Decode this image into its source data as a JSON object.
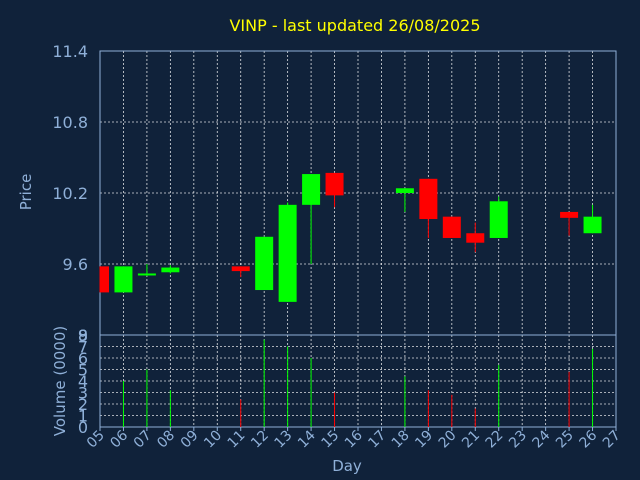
{
  "chart_data": {
    "type": "candlestick",
    "title": "VINP - last updated 26/08/2025",
    "xlabel": "Day",
    "price_panel": {
      "ylabel": "Price",
      "ylim": [
        9.0,
        11.4
      ],
      "yticks": [
        "9",
        "9.6",
        "10.2",
        "10.8",
        "11.4"
      ],
      "grid": true
    },
    "volume_panel": {
      "ylabel": "Volume (0000)",
      "ylim": [
        0,
        8
      ],
      "yticks": [
        "0",
        "1",
        "2",
        "3",
        "4",
        "5",
        "6",
        "7",
        "8"
      ],
      "grid": true
    },
    "x_tick_labels": [
      "05",
      "06",
      "07",
      "08",
      "09",
      "10",
      "11",
      "12",
      "13",
      "14",
      "15",
      "16",
      "17",
      "18",
      "19",
      "20",
      "21",
      "22",
      "23",
      "24",
      "25",
      "26",
      "27"
    ],
    "colors": {
      "up": "#00ff00",
      "down": "#ff0000",
      "background": "#10223a",
      "axis": "#8fb0d8",
      "title": "#ffff00"
    },
    "candles": [
      {
        "day": "05",
        "open": 9.58,
        "close": 9.36,
        "high": 9.58,
        "low": 9.36,
        "volume": 0
      },
      {
        "day": "06",
        "open": 9.36,
        "close": 9.58,
        "high": 9.58,
        "low": 9.36,
        "volume": 4.0
      },
      {
        "day": "07",
        "open": 9.51,
        "close": 9.52,
        "high": 9.6,
        "low": 9.5,
        "volume": 5.0
      },
      {
        "day": "08",
        "open": 9.53,
        "close": 9.57,
        "high": 9.59,
        "low": 9.52,
        "volume": 3.2
      },
      {
        "day": "11",
        "open": 9.58,
        "close": 9.54,
        "high": 9.58,
        "low": 9.49,
        "volume": 2.4
      },
      {
        "day": "12",
        "open": 9.38,
        "close": 9.83,
        "high": 9.83,
        "low": 9.38,
        "volume": 7.6
      },
      {
        "day": "13",
        "open": 9.28,
        "close": 10.1,
        "high": 10.12,
        "low": 9.28,
        "volume": 7.0
      },
      {
        "day": "14",
        "open": 10.1,
        "close": 10.36,
        "high": 10.36,
        "low": 9.6,
        "volume": 6.0
      },
      {
        "day": "15",
        "open": 10.37,
        "close": 10.18,
        "high": 10.37,
        "low": 10.08,
        "volume": 3.0
      },
      {
        "day": "18",
        "open": 10.2,
        "close": 10.24,
        "high": 10.24,
        "low": 10.04,
        "volume": 4.4
      },
      {
        "day": "19",
        "open": 10.32,
        "close": 9.98,
        "high": 10.32,
        "low": 9.82,
        "volume": 3.2
      },
      {
        "day": "20",
        "open": 10.0,
        "close": 9.82,
        "high": 10.0,
        "low": 9.82,
        "volume": 2.8
      },
      {
        "day": "21",
        "open": 9.86,
        "close": 9.78,
        "high": 9.95,
        "low": 9.7,
        "volume": 1.6
      },
      {
        "day": "22",
        "open": 9.82,
        "close": 10.13,
        "high": 10.17,
        "low": 9.82,
        "volume": 5.4
      },
      {
        "day": "25",
        "open": 10.04,
        "close": 9.99,
        "high": 10.04,
        "low": 9.84,
        "volume": 4.8
      },
      {
        "day": "26",
        "open": 9.86,
        "close": 10.0,
        "high": 10.1,
        "low": 9.86,
        "volume": 6.8
      }
    ]
  }
}
